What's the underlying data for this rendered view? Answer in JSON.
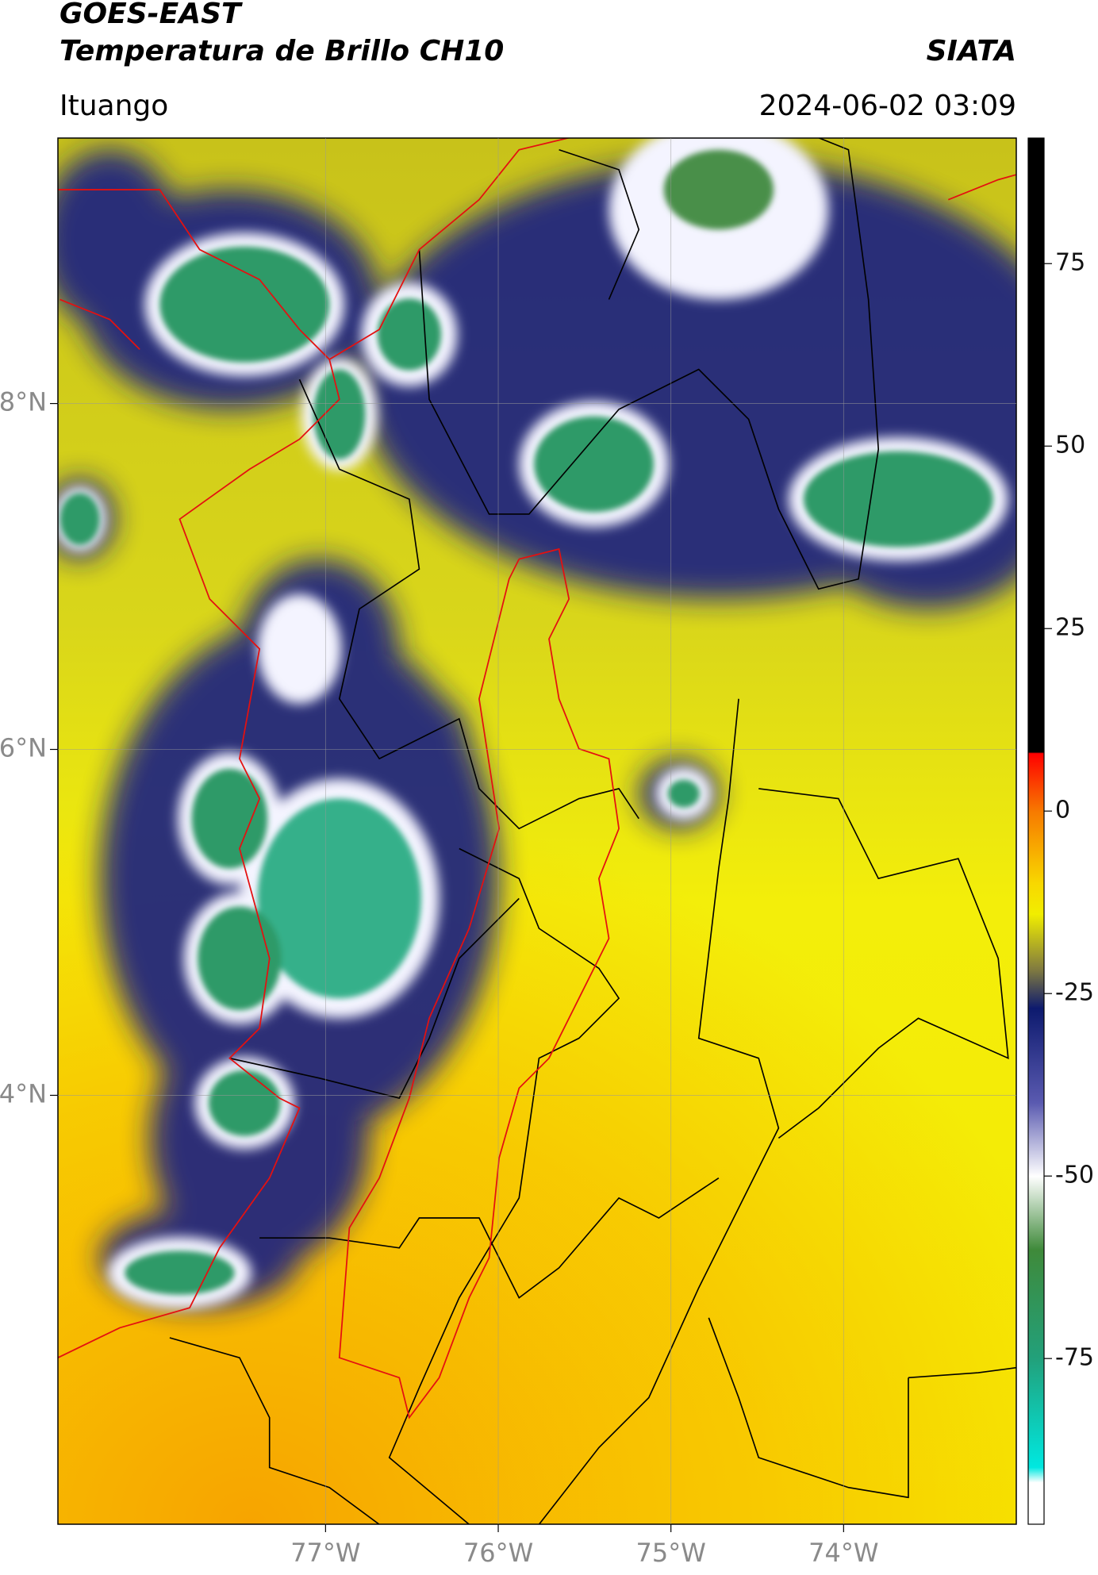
{
  "header": {
    "satellite": "GOES-EAST",
    "title": "Temperatura de Brillo CH10",
    "source": "SIATA",
    "location": "Ituango",
    "timestamp": "2024-06-02 03:09"
  },
  "map": {
    "xlim": [
      -78.55,
      -73.0
    ],
    "ylim": [
      1.52,
      9.535
    ],
    "xticks": [
      {
        "value": -77,
        "label": "77°W"
      },
      {
        "value": -76,
        "label": "76°W"
      },
      {
        "value": -75,
        "label": "75°W"
      },
      {
        "value": -74,
        "label": "74°W"
      }
    ],
    "yticks": [
      {
        "value": 8,
        "label": "8°N"
      },
      {
        "value": 6,
        "label": "6°N"
      },
      {
        "value": 4,
        "label": "4°N"
      }
    ],
    "colorbar": {
      "lim": [
        -97.7,
        92.2
      ],
      "ticks": [
        75,
        50,
        25,
        0,
        -25,
        -50,
        -75
      ]
    }
  }
}
